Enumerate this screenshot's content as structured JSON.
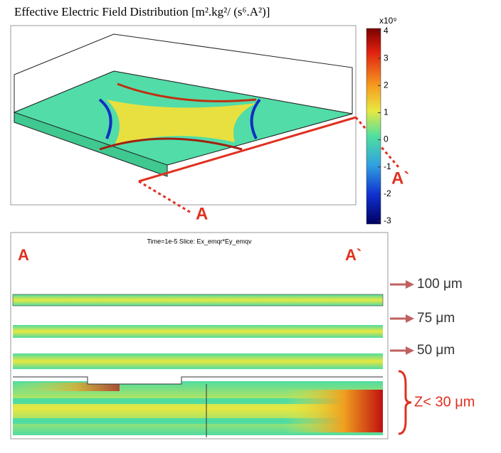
{
  "top_panel": {
    "title": "Effective Electric Field Distribution [m².kg²/ (s⁶.A²)]",
    "colorbar": {
      "exponent": "x10⁹",
      "ticks": [
        4,
        3,
        2,
        1,
        0,
        -1,
        -2,
        -3
      ]
    },
    "markers": [
      "A`",
      "A"
    ]
  },
  "bottom_panel": {
    "header": "Time=1e-5    Slice: Ex_emqr*Ey_emqv",
    "markers": [
      "A",
      "A`"
    ],
    "levels": [
      "100 μm",
      "75 μm",
      "50 μm"
    ],
    "bottom_label": "Z< 30 μm"
  }
}
